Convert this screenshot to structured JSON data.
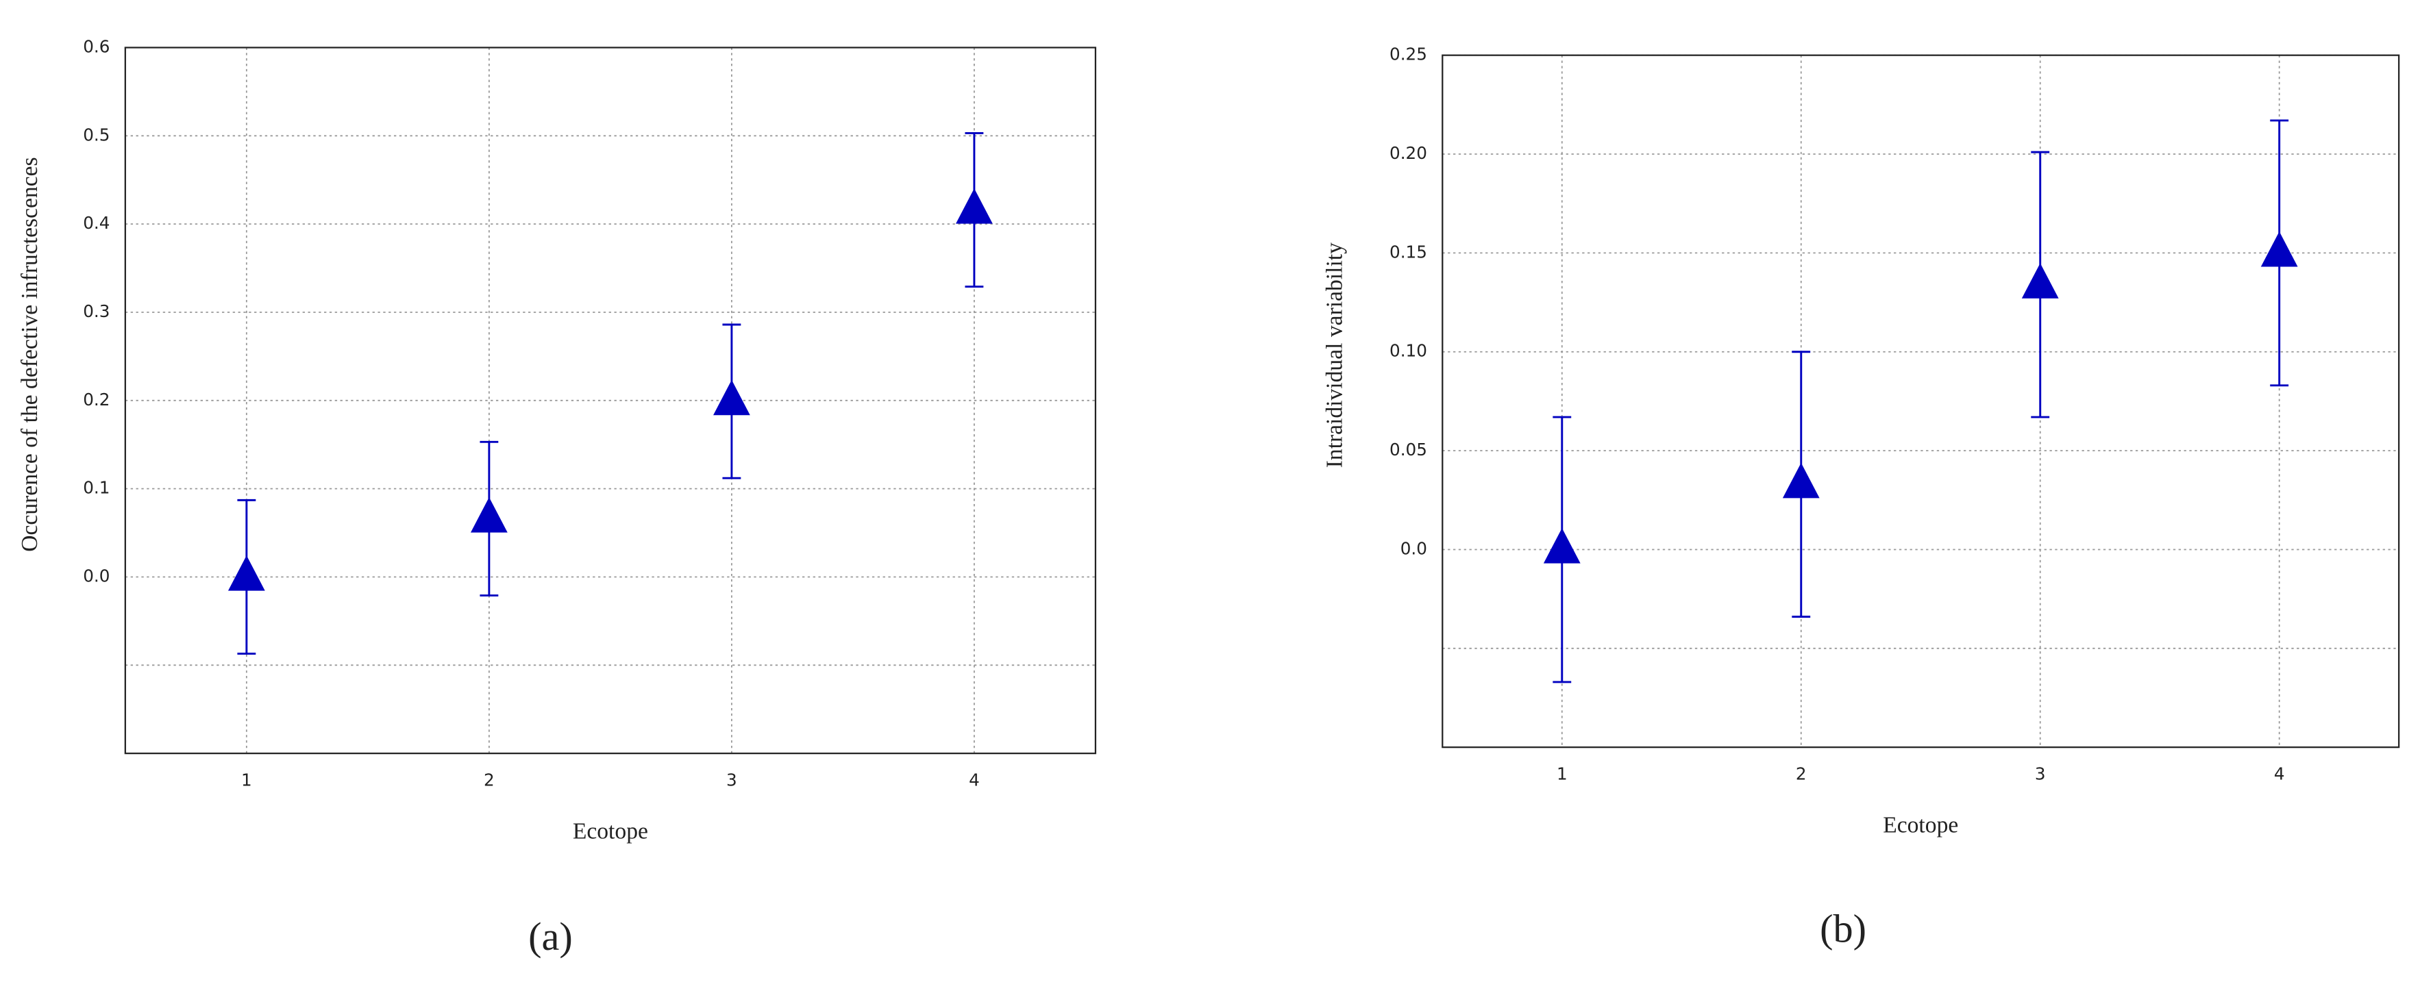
{
  "chart_data": [
    {
      "type": "errorbar",
      "panel_label": "(a)",
      "x_label": "Ecotope",
      "y_label": "Occurence of the defective infructescences",
      "x": [
        1,
        2,
        3,
        4
      ],
      "values": [
        0.0,
        0.066,
        0.199,
        0.416
      ],
      "errors": [
        0.087,
        0.087,
        0.087,
        0.087
      ],
      "color": "#0000c0",
      "xlim": [
        0.5,
        4.5
      ],
      "xticks": [
        1,
        2,
        3,
        4
      ],
      "ylim": [
        -0.2,
        0.6
      ],
      "yticks": [
        {
          "value": -0.1,
          "label": null
        },
        {
          "value": 0,
          "label": "0.0"
        },
        0.1,
        0.2,
        0.3,
        0.4,
        0.5,
        0.6
      ],
      "grid": true
    },
    {
      "type": "errorbar",
      "panel_label": "(b)",
      "x_label": "Ecotope",
      "y_label": "Intraidividual variability",
      "x": [
        1,
        2,
        3,
        4
      ],
      "values": [
        0.0,
        0.033,
        0.134,
        0.15
      ],
      "errors": [
        0.067,
        0.067,
        0.067,
        0.067
      ],
      "color": "#0000c0",
      "xlim": [
        0.5,
        4.5
      ],
      "xticks": [
        1,
        2,
        3,
        4
      ],
      "ylim": [
        -0.1,
        0.25
      ],
      "yticks": [
        {
          "value": -0.05,
          "label": null
        },
        {
          "value": 0,
          "label": "0.0"
        },
        0.05,
        {
          "value": 0.1,
          "label": "0.10"
        },
        0.15,
        {
          "value": 0.2,
          "label": "0.20"
        },
        0.25
      ],
      "grid": true
    }
  ]
}
